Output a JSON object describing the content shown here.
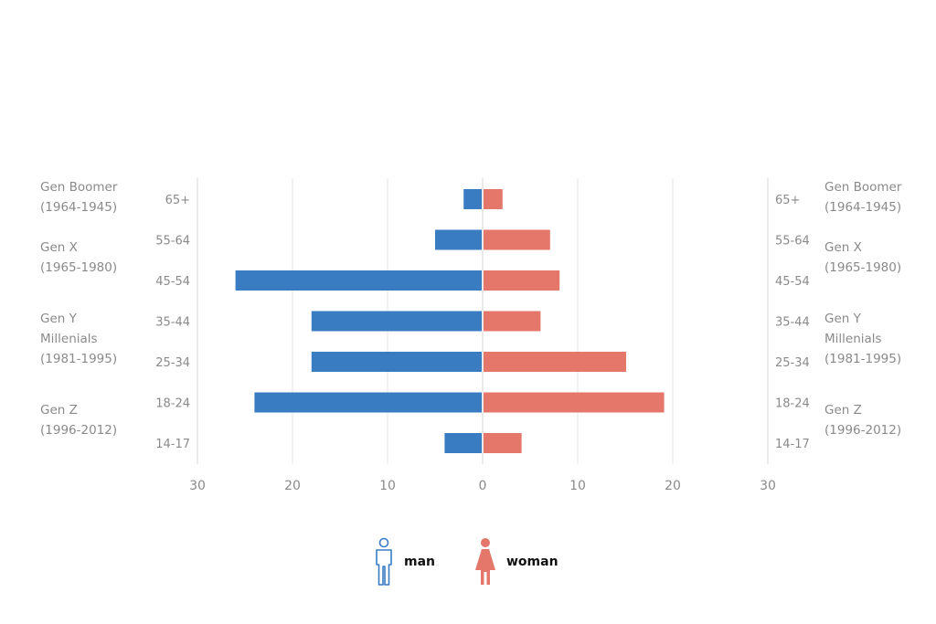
{
  "chart_data": {
    "type": "bar",
    "orientation": "horizontal-butterfly",
    "categories": [
      "65+",
      "55-64",
      "45-54",
      "35-44",
      "25-34",
      "18-24",
      "14-17"
    ],
    "series": [
      {
        "name": "man",
        "color": "#3a7cc2",
        "values": [
          2,
          5,
          26,
          18,
          18,
          24,
          4
        ]
      },
      {
        "name": "woman",
        "color": "#e4766a",
        "values": [
          2,
          7,
          8,
          6,
          15,
          19,
          4
        ]
      }
    ],
    "xlim": [
      -30,
      30
    ],
    "xticks": [
      "30",
      "20",
      "10",
      "0",
      "10",
      "20",
      "30"
    ],
    "grid": true,
    "legend_position": "bottom-center",
    "generation_groups": [
      {
        "name": "Gen Boomer",
        "years": "(1964-1945)",
        "categories": [
          "65+"
        ]
      },
      {
        "name": "Gen X",
        "years": "(1965-1980)",
        "categories": [
          "55-64",
          "45-54"
        ]
      },
      {
        "name": "Gen Y\nMillenials",
        "years": "(1981-1995)",
        "categories": [
          "35-44",
          "25-34"
        ]
      },
      {
        "name": "Gen Z",
        "years": "(1996-2012)",
        "categories": [
          "18-24",
          "14-17"
        ]
      }
    ]
  },
  "legend": {
    "man": {
      "label": "man",
      "icon": "man-icon"
    },
    "woman": {
      "label": "woman",
      "icon": "woman-icon"
    }
  }
}
